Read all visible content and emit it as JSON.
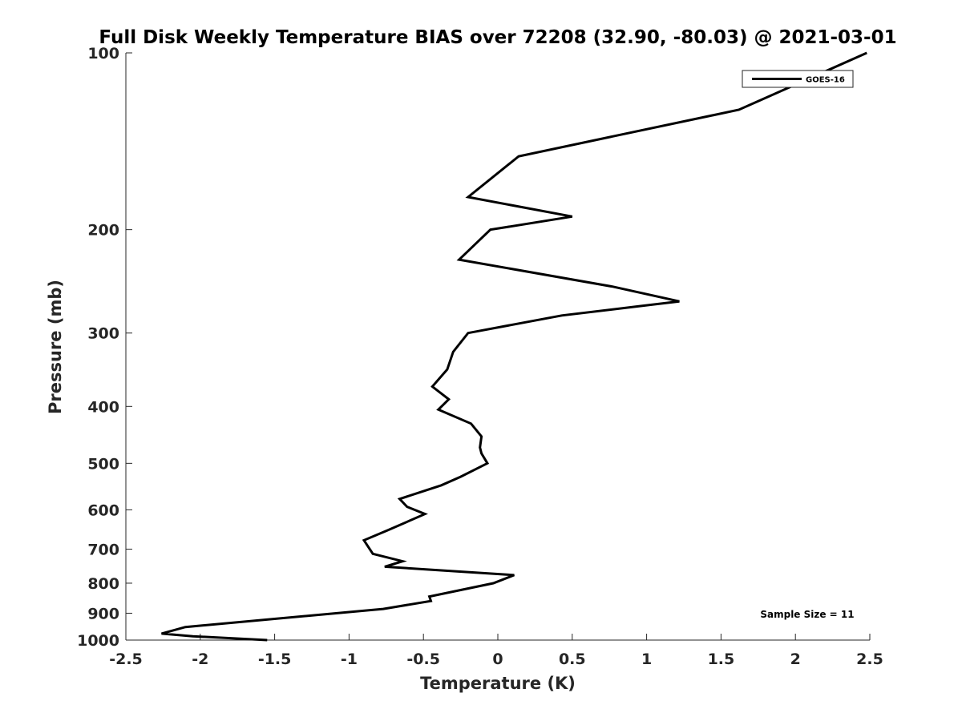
{
  "chart_data": {
    "type": "line",
    "title": "Full Disk Weekly Temperature BIAS over 72208 (32.90, -80.03) @ 2021-03-01",
    "xlabel": "Temperature (K)",
    "ylabel": "Pressure (mb)",
    "xlim": [
      -2.5,
      2.5
    ],
    "ylim": [
      100,
      1000
    ],
    "y_scale": "log",
    "y_reversed": true,
    "xticks": [
      -2.5,
      -2,
      -1.5,
      -1,
      -0.5,
      0,
      0.5,
      1,
      1.5,
      2,
      2.5
    ],
    "xtick_labels": [
      "-2.5",
      "-2",
      "-1.5",
      "-1",
      "-0.5",
      "0",
      "0.5",
      "1",
      "1.5",
      "2",
      "2.5"
    ],
    "yticks": [
      100,
      200,
      300,
      400,
      500,
      600,
      700,
      800,
      900,
      1000
    ],
    "ytick_labels": [
      "100",
      "200",
      "300",
      "400",
      "500",
      "600",
      "700",
      "800",
      "900",
      "1000"
    ],
    "grid": false,
    "legend_position": "top-right",
    "annotation": "Sample Size = 11",
    "colors": {
      "line": "#000000",
      "axis": "#262626"
    },
    "series": [
      {
        "name": "GOES-16",
        "points": [
          [
            2.48,
            100
          ],
          [
            1.62,
            125
          ],
          [
            0.14,
            150
          ],
          [
            -0.2,
            176
          ],
          [
            0.5,
            190
          ],
          [
            -0.05,
            200
          ],
          [
            -0.26,
            225
          ],
          [
            0.77,
            250
          ],
          [
            1.22,
            265
          ],
          [
            0.43,
            280
          ],
          [
            -0.2,
            300
          ],
          [
            -0.3,
            323
          ],
          [
            -0.34,
            346
          ],
          [
            -0.44,
            370
          ],
          [
            -0.33,
            389
          ],
          [
            -0.4,
            405
          ],
          [
            -0.18,
            428
          ],
          [
            -0.11,
            450
          ],
          [
            -0.12,
            470
          ],
          [
            -0.11,
            481
          ],
          [
            -0.07,
            500
          ],
          [
            -0.25,
            527
          ],
          [
            -0.38,
            545
          ],
          [
            -0.66,
            575
          ],
          [
            -0.61,
            593
          ],
          [
            -0.49,
            610
          ],
          [
            -0.74,
            650
          ],
          [
            -0.9,
            676
          ],
          [
            -0.84,
            713
          ],
          [
            -0.64,
            734
          ],
          [
            -0.76,
            750
          ],
          [
            0.11,
            775
          ],
          [
            -0.03,
            800
          ],
          [
            -0.46,
            843
          ],
          [
            -0.45,
            858
          ],
          [
            -0.77,
            885
          ],
          [
            -2.1,
            950
          ],
          [
            -2.26,
            975
          ],
          [
            -2.05,
            985
          ],
          [
            -1.55,
            1000
          ]
        ]
      }
    ]
  }
}
